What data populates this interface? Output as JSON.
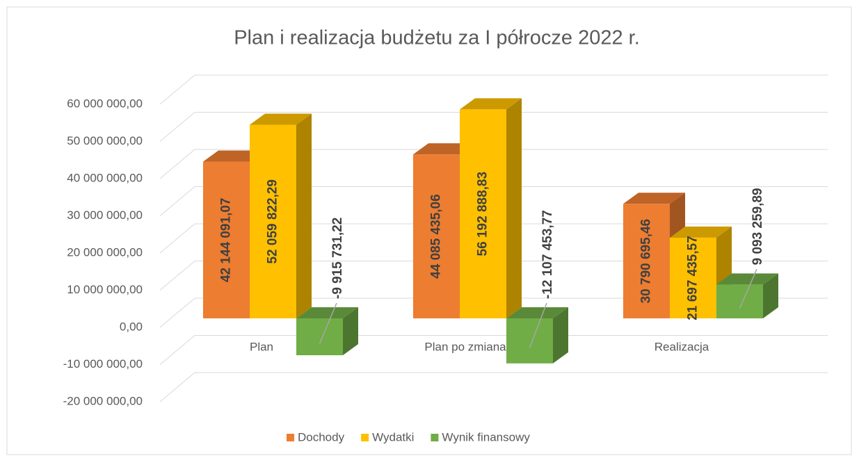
{
  "chart_data": {
    "type": "bar3d",
    "title": "Plan i realizacja budżetu za I półrocze 2022 r.",
    "categories": [
      "Plan",
      "Plan po zmianach",
      "Realizacja"
    ],
    "series": [
      {
        "name": "Dochody",
        "color": "#ed7d31",
        "values": [
          42144091.07,
          44085435.06,
          30790695.46
        ],
        "value_labels": [
          "42 144 091,07",
          "44 085 435,06",
          "30 790 695,46"
        ]
      },
      {
        "name": "Wydatki",
        "color": "#ffc000",
        "values": [
          52059822.29,
          56192888.83,
          21697435.57
        ],
        "value_labels": [
          "52 059 822,29",
          "56 192 888,83",
          "21 697 435,57"
        ]
      },
      {
        "name": "Wynik finansowy",
        "color": "#70ad47",
        "values": [
          -9915731.22,
          -12107453.77,
          9093259.89
        ],
        "value_labels": [
          "-9 915 731,22",
          "-12 107 453,77",
          "9 093 259,89"
        ]
      }
    ],
    "ylim": [
      -20000000,
      60000000
    ],
    "yticks": [
      {
        "value": -20000000,
        "label": "-20 000 000,00"
      },
      {
        "value": -10000000,
        "label": "-10 000 000,00"
      },
      {
        "value": 0,
        "label": "0,00"
      },
      {
        "value": 10000000,
        "label": "10 000 000,00"
      },
      {
        "value": 20000000,
        "label": "20 000 000,00"
      },
      {
        "value": 30000000,
        "label": "30 000 000,00"
      },
      {
        "value": 40000000,
        "label": "40 000 000,00"
      },
      {
        "value": 50000000,
        "label": "50 000 000,00"
      },
      {
        "value": 60000000,
        "label": "60 000 000,00"
      }
    ],
    "grid": true,
    "legend": "bottom"
  }
}
